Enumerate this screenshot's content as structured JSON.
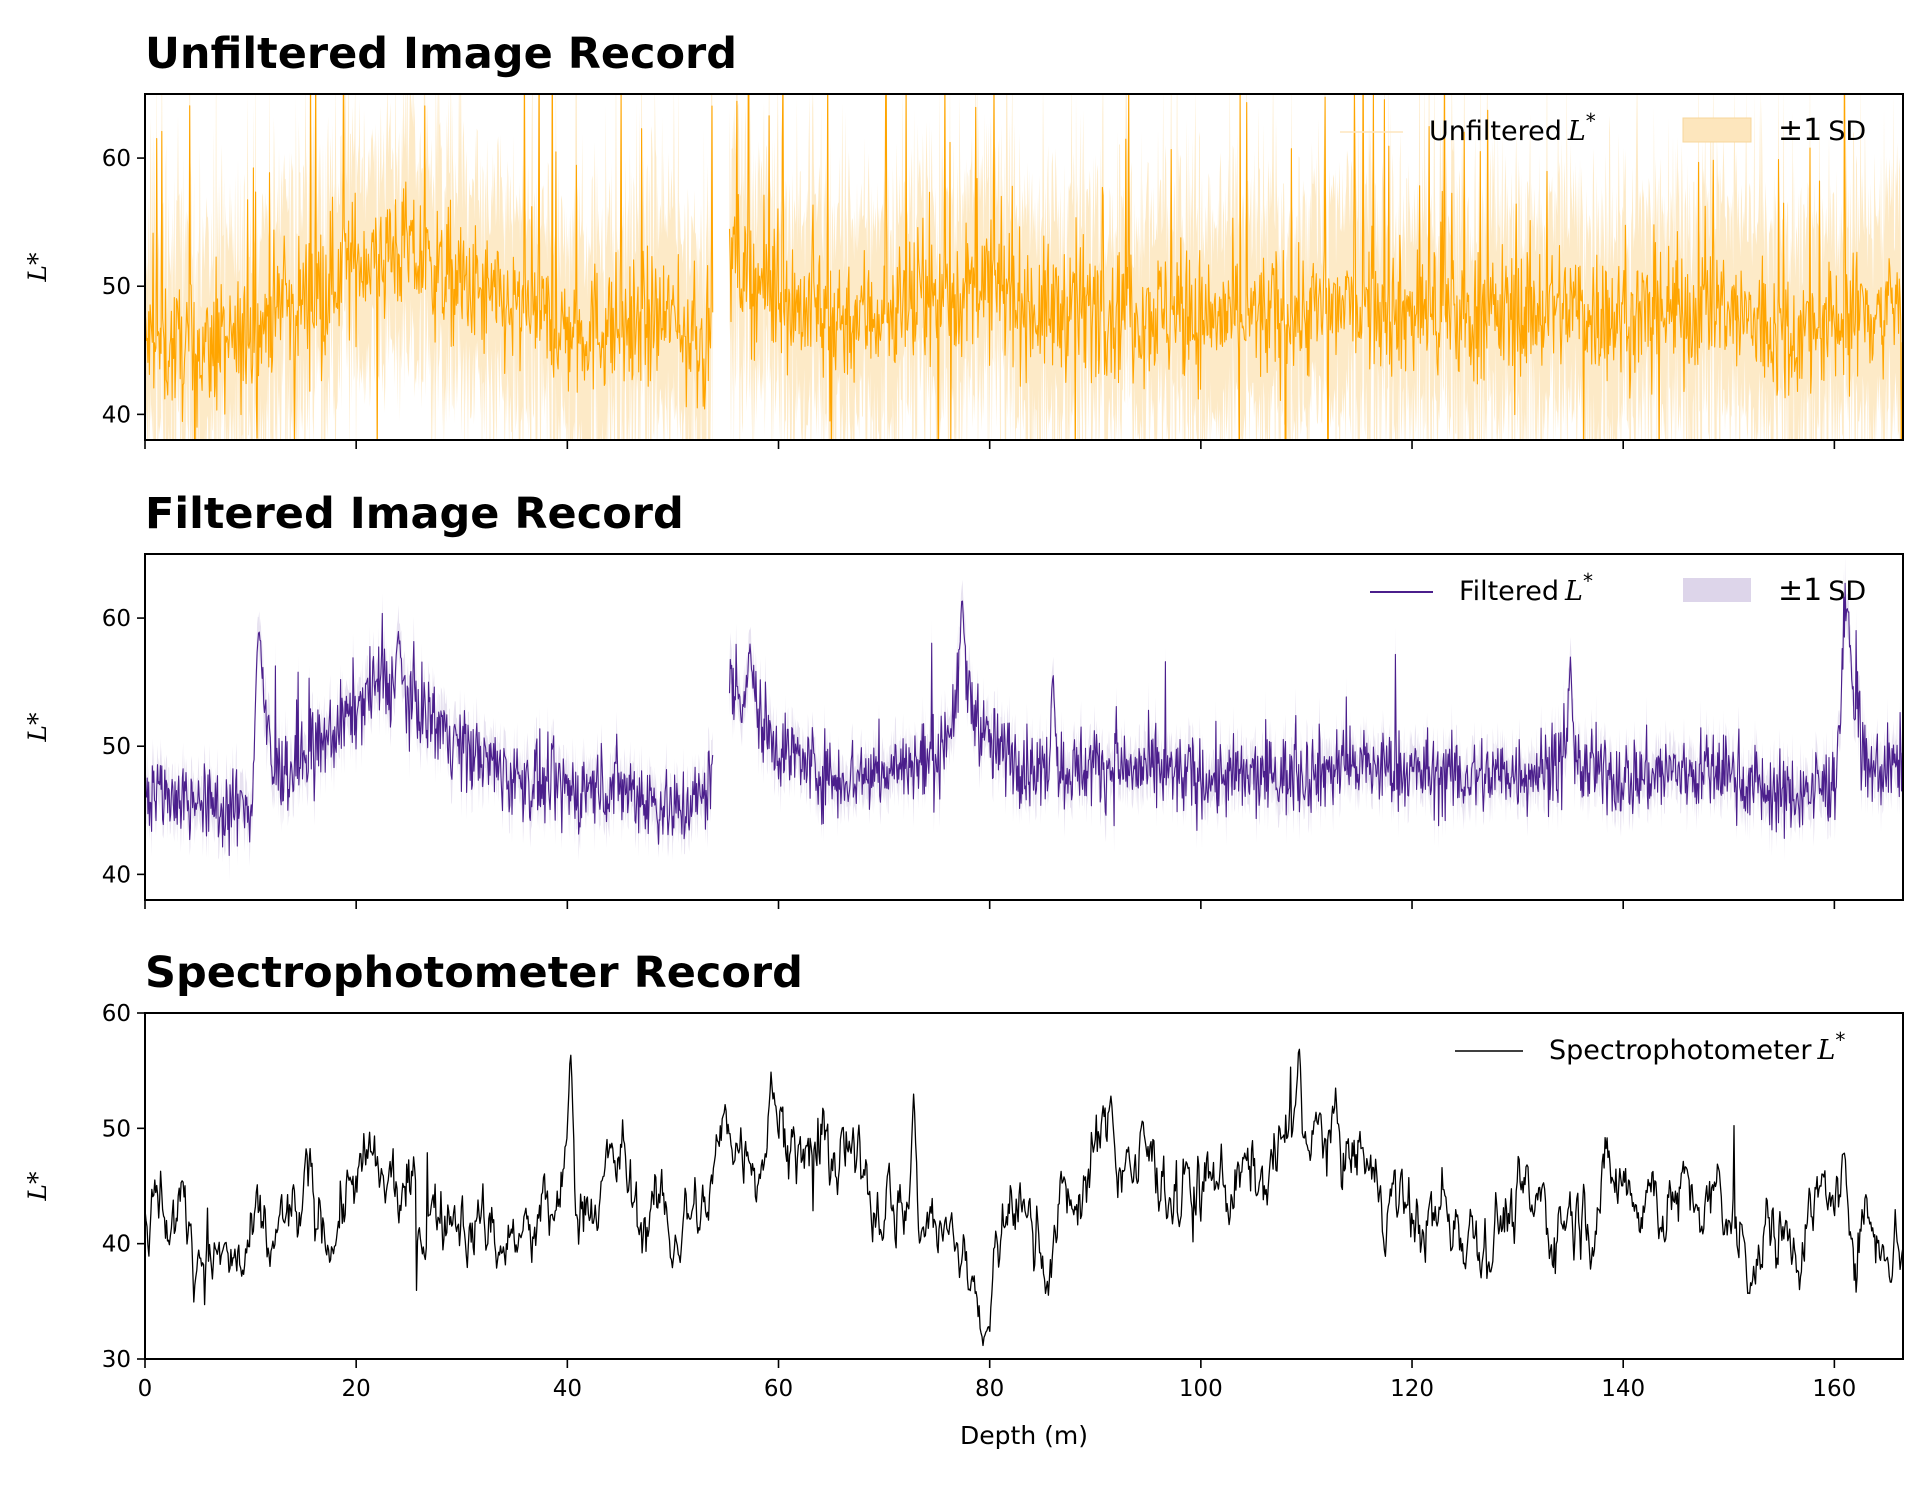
{
  "colors": {
    "unfiltered": "#ffa500",
    "unfiltered_band": "#fde6bd",
    "filtered": "#4b1f8c",
    "filtered_band": "#ddd5ea",
    "spectro": "#000000"
  },
  "chart_data": [
    {
      "type": "line",
      "title": "Unfiltered Image Record",
      "ylabel": "L*",
      "xlabel": "",
      "xlim": [
        0,
        166.5
      ],
      "ylim": [
        38,
        65
      ],
      "yticks": [
        "40",
        "50",
        "60"
      ],
      "xticks": [
        0,
        20,
        40,
        60,
        80,
        100,
        120,
        140,
        160
      ],
      "show_xtick_labels": false,
      "grid": false,
      "legend_position": "top-right",
      "legend": {
        "line": "Unfiltered",
        "line_sym": "L",
        "line_sup": "*",
        "band": "±1",
        "band_unit": "SD"
      },
      "gaps": [
        [
          53.8,
          55.3
        ]
      ],
      "anchors": {
        "x": [
          0,
          5,
          10,
          12,
          15,
          20,
          24,
          30,
          35,
          40,
          45,
          50,
          53,
          55.5,
          60,
          65,
          70,
          75,
          80,
          85,
          90,
          95,
          100,
          105,
          110,
          115,
          120,
          125,
          130,
          135,
          140,
          145,
          150,
          155,
          160,
          163,
          166.5
        ],
        "y": [
          45.5,
          45,
          45.5,
          48,
          49,
          52,
          53,
          50,
          48,
          46.5,
          47,
          47.5,
          45,
          52,
          49,
          47.5,
          48,
          49,
          50,
          48,
          48.5,
          48,
          47.5,
          47.5,
          48,
          48.5,
          48,
          47.5,
          48,
          48.5,
          47.5,
          48,
          48,
          46,
          47,
          48,
          48.5
        ]
      },
      "series": [
        {
          "name": "Unfiltered L*",
          "role": "line",
          "sd": 7.0
        }
      ]
    },
    {
      "type": "line",
      "title": "Filtered Image Record",
      "ylabel": "L*",
      "xlabel": "",
      "xlim": [
        0,
        166.5
      ],
      "ylim": [
        38,
        65
      ],
      "yticks": [
        "40",
        "50",
        "60"
      ],
      "xticks": [
        0,
        20,
        40,
        60,
        80,
        100,
        120,
        140,
        160
      ],
      "show_xtick_labels": false,
      "grid": false,
      "legend_position": "top-right",
      "legend": {
        "line": "Filtered",
        "line_sym": "L",
        "line_sup": "*",
        "band": "±1",
        "band_unit": "SD"
      },
      "gaps": [
        [
          53.8,
          55.3
        ]
      ],
      "anchors": {
        "x": [
          0,
          5,
          10,
          10.8,
          12,
          15,
          20,
          22,
          25,
          30,
          35,
          40,
          45,
          50,
          53,
          55.5,
          57,
          60,
          65,
          70,
          75,
          77.5,
          80,
          85,
          90,
          95,
          100,
          105,
          110,
          115,
          120,
          125,
          130,
          135,
          140,
          145,
          150,
          155,
          160,
          161,
          163,
          166.5
        ],
        "y": [
          47,
          45.5,
          45,
          57,
          48,
          48.5,
          53,
          55,
          54,
          50,
          47.5,
          46.5,
          47,
          45,
          46,
          55,
          54,
          50,
          47.5,
          48,
          49,
          55,
          50,
          48,
          48.5,
          48,
          47.5,
          47.5,
          48,
          48.5,
          48,
          47.5,
          48,
          48.5,
          47.5,
          48,
          48,
          46,
          47,
          58,
          48,
          48.5
        ]
      },
      "spikes": [
        [
          10.8,
          59
        ],
        [
          57.3,
          58
        ],
        [
          77.4,
          61.7
        ],
        [
          161.2,
          61
        ],
        [
          24,
          59
        ],
        [
          86,
          56
        ],
        [
          135,
          57
        ]
      ],
      "series": [
        {
          "name": "Filtered L*",
          "role": "line",
          "sd": 1.5
        }
      ]
    },
    {
      "type": "line",
      "title": "Spectrophotometer Record",
      "ylabel": "L*",
      "xlabel": "Depth (m)",
      "xlim": [
        0,
        166.5
      ],
      "ylim": [
        30,
        60
      ],
      "yticks": [
        "30",
        "40",
        "50",
        "60"
      ],
      "xticks": [
        0,
        20,
        40,
        60,
        80,
        100,
        120,
        140,
        160
      ],
      "show_xtick_labels": true,
      "grid": false,
      "legend_position": "top-right",
      "legend": {
        "line": "Spectrophotometer",
        "line_sym": "L",
        "line_sup": "*"
      },
      "anchors": {
        "x": [
          0,
          1,
          3,
          5,
          7,
          9,
          12,
          15,
          18,
          20,
          23,
          26,
          30,
          33,
          37,
          40,
          42,
          45,
          47,
          50,
          53,
          55,
          58,
          60,
          63,
          66,
          70,
          73,
          76,
          78,
          80,
          82,
          85,
          88,
          91,
          94,
          97,
          100,
          103,
          106,
          109,
          112,
          115,
          118,
          121,
          124,
          127,
          130,
          133,
          136,
          140,
          143,
          146,
          150,
          153,
          156,
          160,
          163,
          166.5
        ],
        "y": [
          43,
          44,
          42,
          41,
          38,
          37,
          40,
          43,
          42,
          46,
          44,
          43,
          42,
          41,
          40,
          45,
          44,
          47,
          42,
          41,
          43,
          50,
          49,
          51,
          47,
          46,
          45,
          43,
          40,
          38,
          34,
          44,
          40,
          44,
          49,
          47,
          46,
          44,
          45,
          46,
          50,
          48,
          47,
          43,
          42,
          43,
          42,
          43,
          42,
          43,
          46,
          45,
          43,
          42,
          40,
          42,
          44,
          42,
          41
        ]
      },
      "spikes": [
        [
          40.3,
          57
        ],
        [
          59.3,
          55
        ],
        [
          79.6,
          32
        ],
        [
          109.3,
          57.5
        ],
        [
          72.8,
          53
        ],
        [
          91.5,
          53
        ]
      ],
      "series": [
        {
          "name": "Spectrophotometer L*",
          "role": "line"
        }
      ]
    }
  ]
}
